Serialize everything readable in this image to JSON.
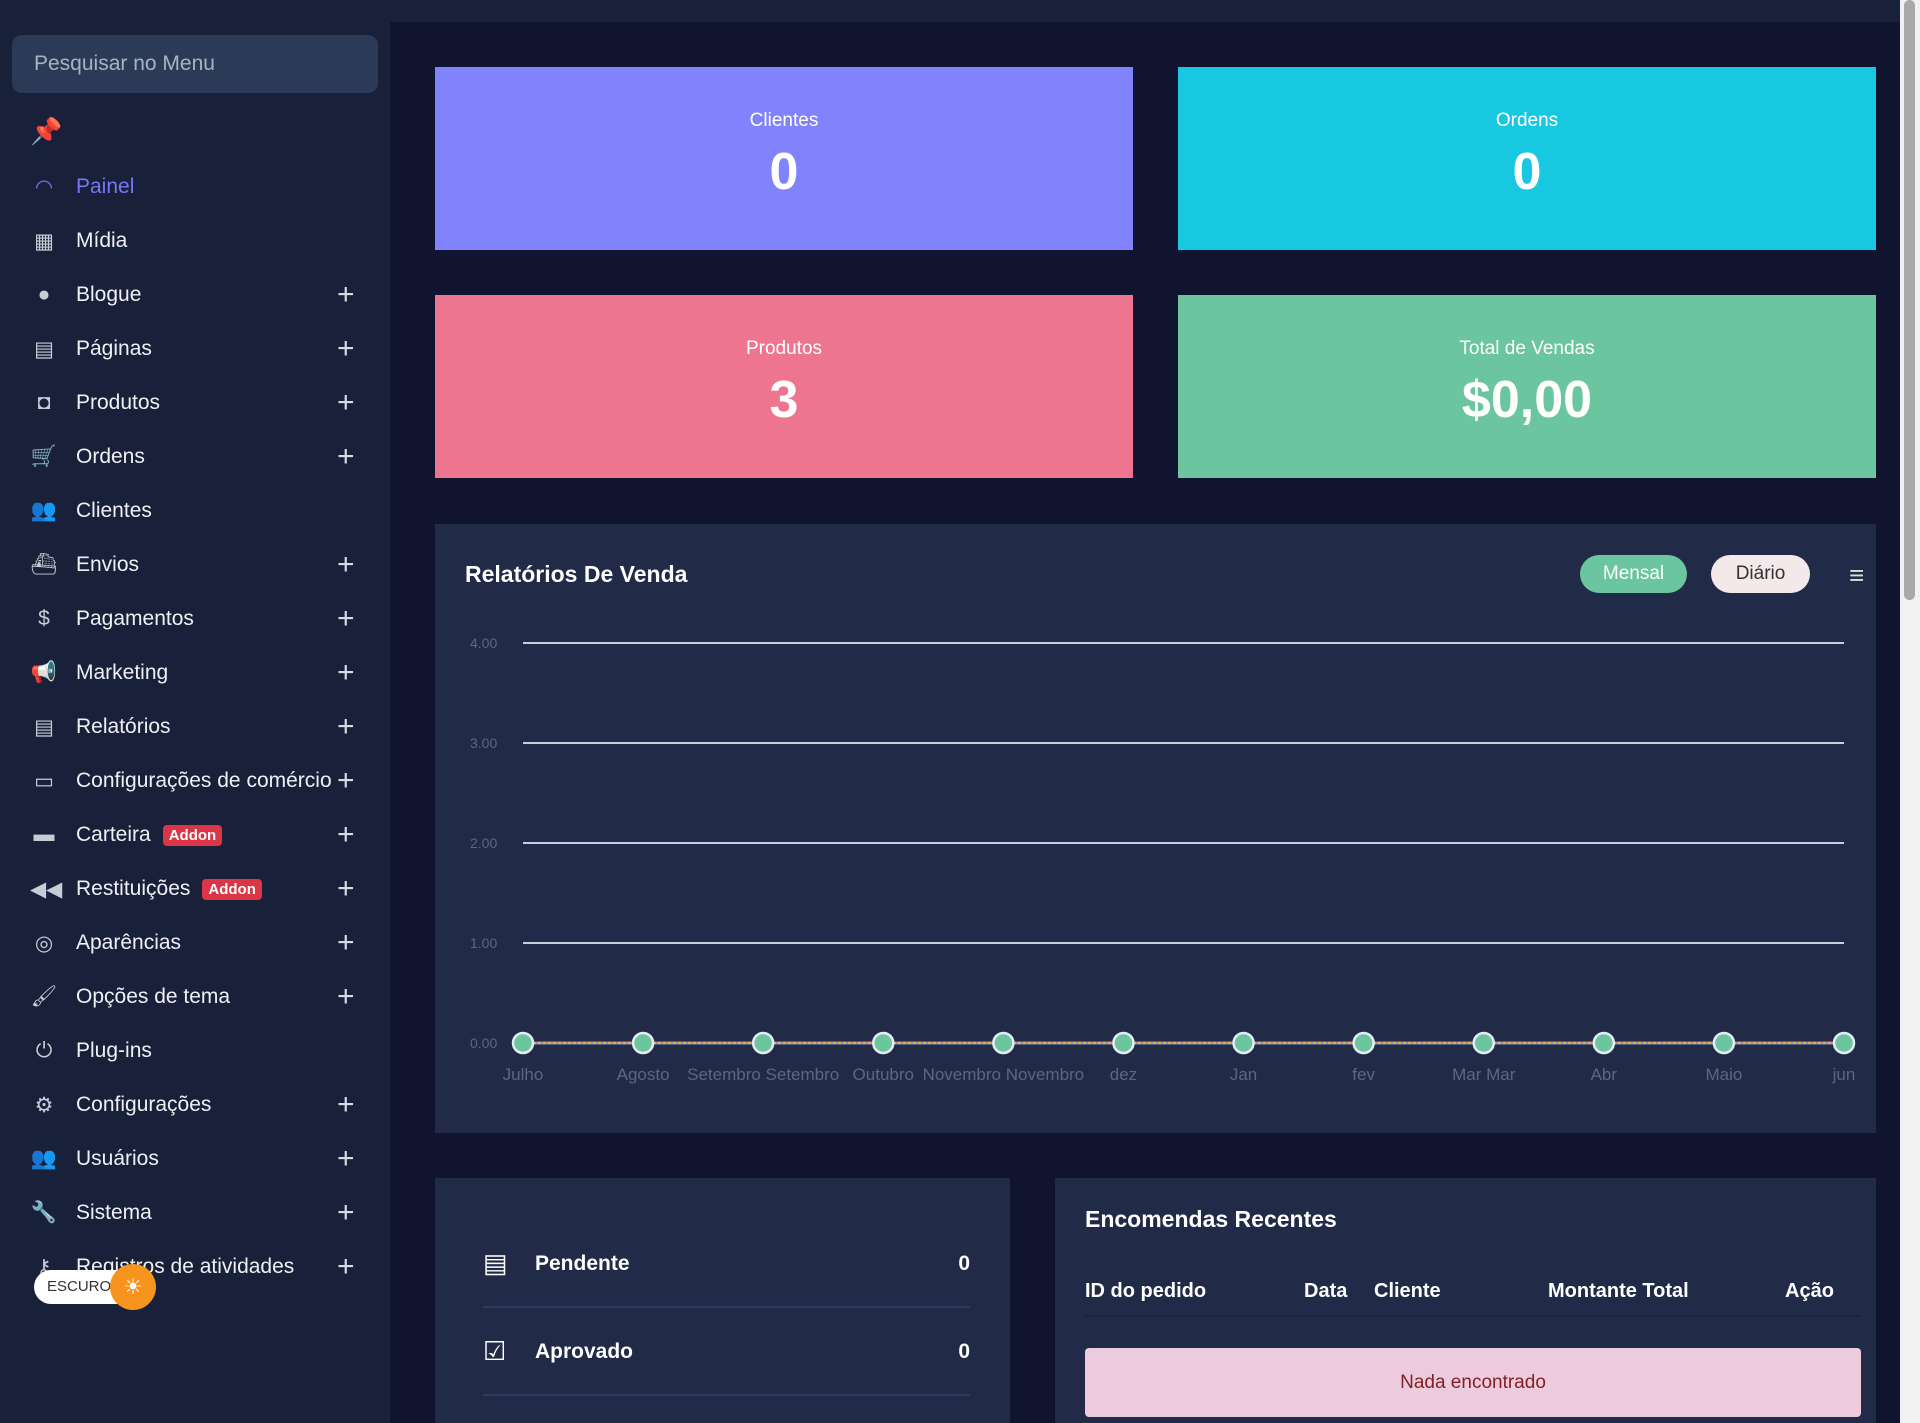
{
  "sidebar": {
    "search_placeholder": "Pesquisar no Menu",
    "items": [
      {
        "label": "Painel",
        "icon": "dashboard-gauge-icon",
        "glyph": "◠",
        "expand": false,
        "active": true
      },
      {
        "label": "Mídia",
        "icon": "media-icon",
        "glyph": "▦",
        "expand": false
      },
      {
        "label": "Blogue",
        "icon": "blogger-icon",
        "glyph": "●",
        "expand": true
      },
      {
        "label": "Páginas",
        "icon": "page-icon",
        "glyph": "▤",
        "expand": true
      },
      {
        "label": "Produtos",
        "icon": "product-icon",
        "glyph": "◘",
        "expand": true
      },
      {
        "label": "Ordens",
        "icon": "cart-icon",
        "glyph": "🛒",
        "expand": true
      },
      {
        "label": "Clientes",
        "icon": "users-icon",
        "glyph": "👥",
        "expand": false
      },
      {
        "label": "Envios",
        "icon": "ship-icon",
        "glyph": "⛴",
        "expand": true
      },
      {
        "label": "Pagamentos",
        "icon": "money-bag-icon",
        "glyph": "$",
        "expand": true
      },
      {
        "label": "Marketing",
        "icon": "megaphone-icon",
        "glyph": "📢",
        "expand": true
      },
      {
        "label": "Relatórios",
        "icon": "report-icon",
        "glyph": "▤",
        "expand": true
      },
      {
        "label": "Configurações de comércio",
        "icon": "window-icon",
        "glyph": "▭",
        "expand": true
      },
      {
        "label": "Carteira",
        "icon": "wallet-icon",
        "glyph": "▬",
        "expand": true,
        "badge": "Addon"
      },
      {
        "label": "Restituições",
        "icon": "rewind-icon",
        "glyph": "◀◀",
        "expand": true,
        "badge": "Addon"
      },
      {
        "label": "Aparências",
        "icon": "appearance-icon",
        "glyph": "◎",
        "expand": true
      },
      {
        "label": "Opções de tema",
        "icon": "paint-brush-icon",
        "glyph": "🖌",
        "expand": true
      },
      {
        "label": "Plug-ins",
        "icon": "plug-icon",
        "glyph": "⏻",
        "expand": false
      },
      {
        "label": "Configurações",
        "icon": "gears-icon",
        "glyph": "⚙",
        "expand": true
      },
      {
        "label": "Usuários",
        "icon": "user-group-icon",
        "glyph": "👥",
        "expand": true
      },
      {
        "label": "Sistema",
        "icon": "wrench-icon",
        "glyph": "🔧",
        "expand": true
      },
      {
        "label": "Registros de atividades",
        "icon": "key-icon",
        "glyph": "⚷",
        "expand": true
      }
    ],
    "theme_toggle": "ESCURO"
  },
  "cards": [
    {
      "title": "Clientes",
      "value": "0",
      "color": "#8183fd"
    },
    {
      "title": "Ordens",
      "value": "0",
      "color": "#17c8e0"
    },
    {
      "title": "Produtos",
      "value": "3",
      "color": "#ee7590"
    },
    {
      "title": "Total de Vendas",
      "value": "$0,00",
      "color": "#6bc59e"
    }
  ],
  "sales_report": {
    "title": "Relatórios De Venda",
    "monthly_label": "Mensal",
    "daily_label": "Diário"
  },
  "chart_data": {
    "type": "line",
    "categories": [
      "Julho",
      "Agosto",
      "Setembro Setembro",
      "Outubro",
      "Novembro Novembro",
      "dez",
      "Jan",
      "fev",
      "Mar Mar",
      "Abr",
      "Maio",
      "jun"
    ],
    "values": [
      0,
      0,
      0,
      0,
      0,
      0,
      0,
      0,
      0,
      0,
      0,
      0
    ],
    "ylim": [
      0,
      4
    ],
    "yticks": [
      "0.00",
      "1.00",
      "2.00",
      "3.00",
      "4.00"
    ],
    "grid": true,
    "line_color": "#f0a84a",
    "marker_color": "#6bc59e"
  },
  "order_status": [
    {
      "label": "Pendente",
      "value": "0",
      "icon": "list-icon",
      "glyph": "▤"
    },
    {
      "label": "Aprovado",
      "value": "0",
      "icon": "checkbox-icon",
      "glyph": "☑"
    }
  ],
  "recent_orders": {
    "title": "Encomendas Recentes",
    "columns": [
      "ID do pedido",
      "Data",
      "Cliente",
      "Montante Total",
      "Ação"
    ],
    "empty": "Nada encontrado"
  }
}
